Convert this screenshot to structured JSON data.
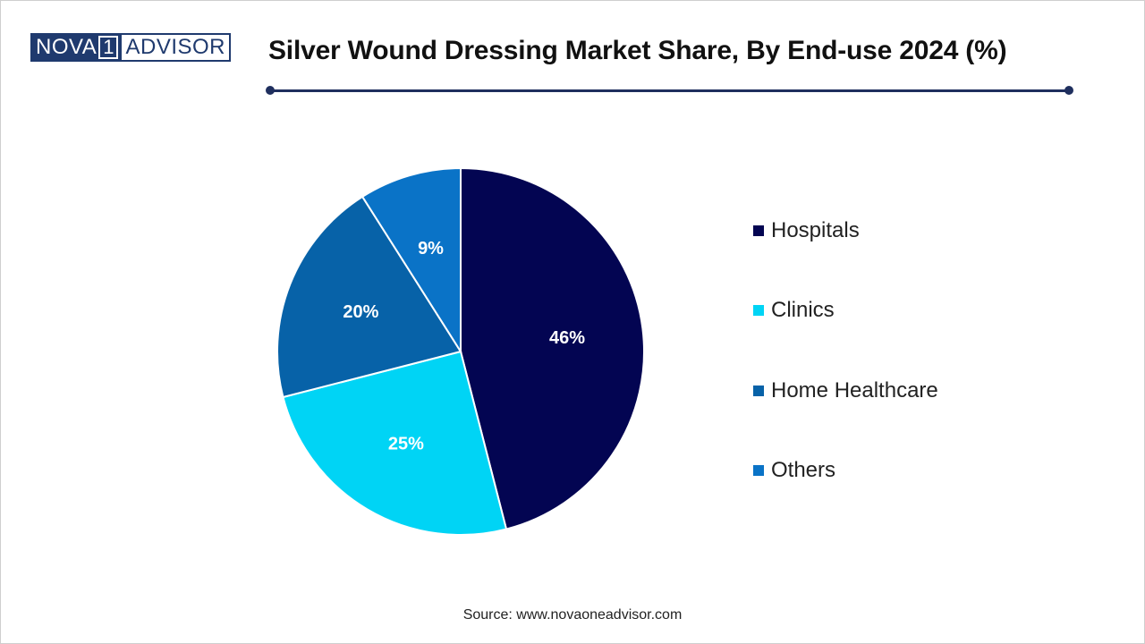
{
  "logo": {
    "part1": "NOVA",
    "part2": "1",
    "part3": "ADVISOR"
  },
  "title": "Silver Wound Dressing Market Share, By End-use 2024 (%)",
  "source": "Source: www.novaoneadvisor.com",
  "chart_data": {
    "type": "pie",
    "title": "Silver Wound Dressing Market Share, By End-use 2024 (%)",
    "categories": [
      "Hospitals",
      "Clinics",
      "Home Healthcare",
      "Others"
    ],
    "values": [
      46,
      25,
      20,
      9
    ],
    "labels": [
      "46%",
      "25%",
      "20%",
      "9%"
    ],
    "colors": [
      "#030552",
      "#00d4f5",
      "#0762a8",
      "#0a73c7"
    ],
    "legend_position": "right"
  }
}
